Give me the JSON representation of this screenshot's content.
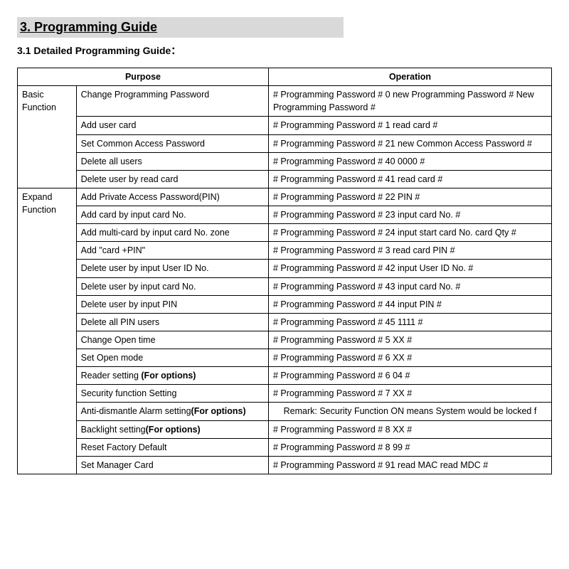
{
  "section_title": "3. Programming Guide",
  "subsection_title": "3.1 Detailed Programming Guide：",
  "headers": {
    "purpose": "Purpose",
    "operation": "Operation"
  },
  "categories": {
    "basic": "Basic Function",
    "expand": "Expand Function"
  },
  "rows": {
    "basic": [
      {
        "purpose": "Change Programming Password",
        "operation": "#   Programming Password   #   0   new Programming Password   # New   Programming Password   #"
      },
      {
        "purpose": "Add user card",
        "operation": "#   Programming Password   #   1   read card   #"
      },
      {
        "purpose": "Set Common Access Password",
        "operation": "#   Programming Password   #   21   new Common Access Password   #"
      },
      {
        "purpose": "Delete all users",
        "operation": "#   Programming Password   #   40   0000   #"
      },
      {
        "purpose": "Delete user by read card",
        "operation": "#   Programming Password   #   41   read card   #"
      }
    ],
    "expand": [
      {
        "purpose": "Add Private Access Password(PIN)",
        "operation": "#   Programming Password   #   22   PIN   #"
      },
      {
        "purpose": "Add card by input card No.",
        "operation": "#   Programming Password   #   23   input card No.   #"
      },
      {
        "purpose": "Add multi-card by input card No. zone",
        "operation": "#   Programming Password   #   24   input start card No.   card Qty   #"
      },
      {
        "purpose": "Add \"card +PIN\"",
        "operation": "#   Programming Password   #   3   read card   PIN   #"
      },
      {
        "purpose": "Delete user by input User ID No.",
        "operation": "#   Programming Password   #   42   input User ID No.   #"
      },
      {
        "purpose": "Delete user by input card No.",
        "operation": "#   Programming Password   #   43   input card No.   #"
      },
      {
        "purpose": "Delete user by input PIN",
        "operation": "#   Programming Password   #   44   input PIN   #"
      },
      {
        "purpose": "Delete all PIN users",
        "operation": "#   Programming Password   #   45   1111   #"
      },
      {
        "purpose": "Change Open time",
        "operation": "#   Programming Password   #   5   XX   #"
      },
      {
        "purpose": "Set Open mode",
        "operation": "#   Programming Password   #   6   XX   #"
      },
      {
        "purpose_plain": "Reader setting ",
        "purpose_bold": "(For options)",
        "operation": "#   Programming Password   #   6   04   #"
      },
      {
        "purpose": "Security function Setting",
        "operation": "#   Programming Password   #   7   XX   #"
      },
      {
        "purpose_plain": "Anti-dismantle Alarm setting",
        "purpose_bold": "(For options)",
        "remark": "Remark: Security Function ON means System would be locked f"
      },
      {
        "purpose_plain": "Backlight setting",
        "purpose_bold": "(For options)",
        "operation": "#   Programming Password   #   8   XX   #"
      },
      {
        "purpose": "Reset Factory Default",
        "operation": "#   Programming Password   #   8   99   #"
      },
      {
        "purpose": "Set Manager Card",
        "operation": "#   Programming Password   #   91   read MAC   read MDC   #"
      }
    ]
  }
}
